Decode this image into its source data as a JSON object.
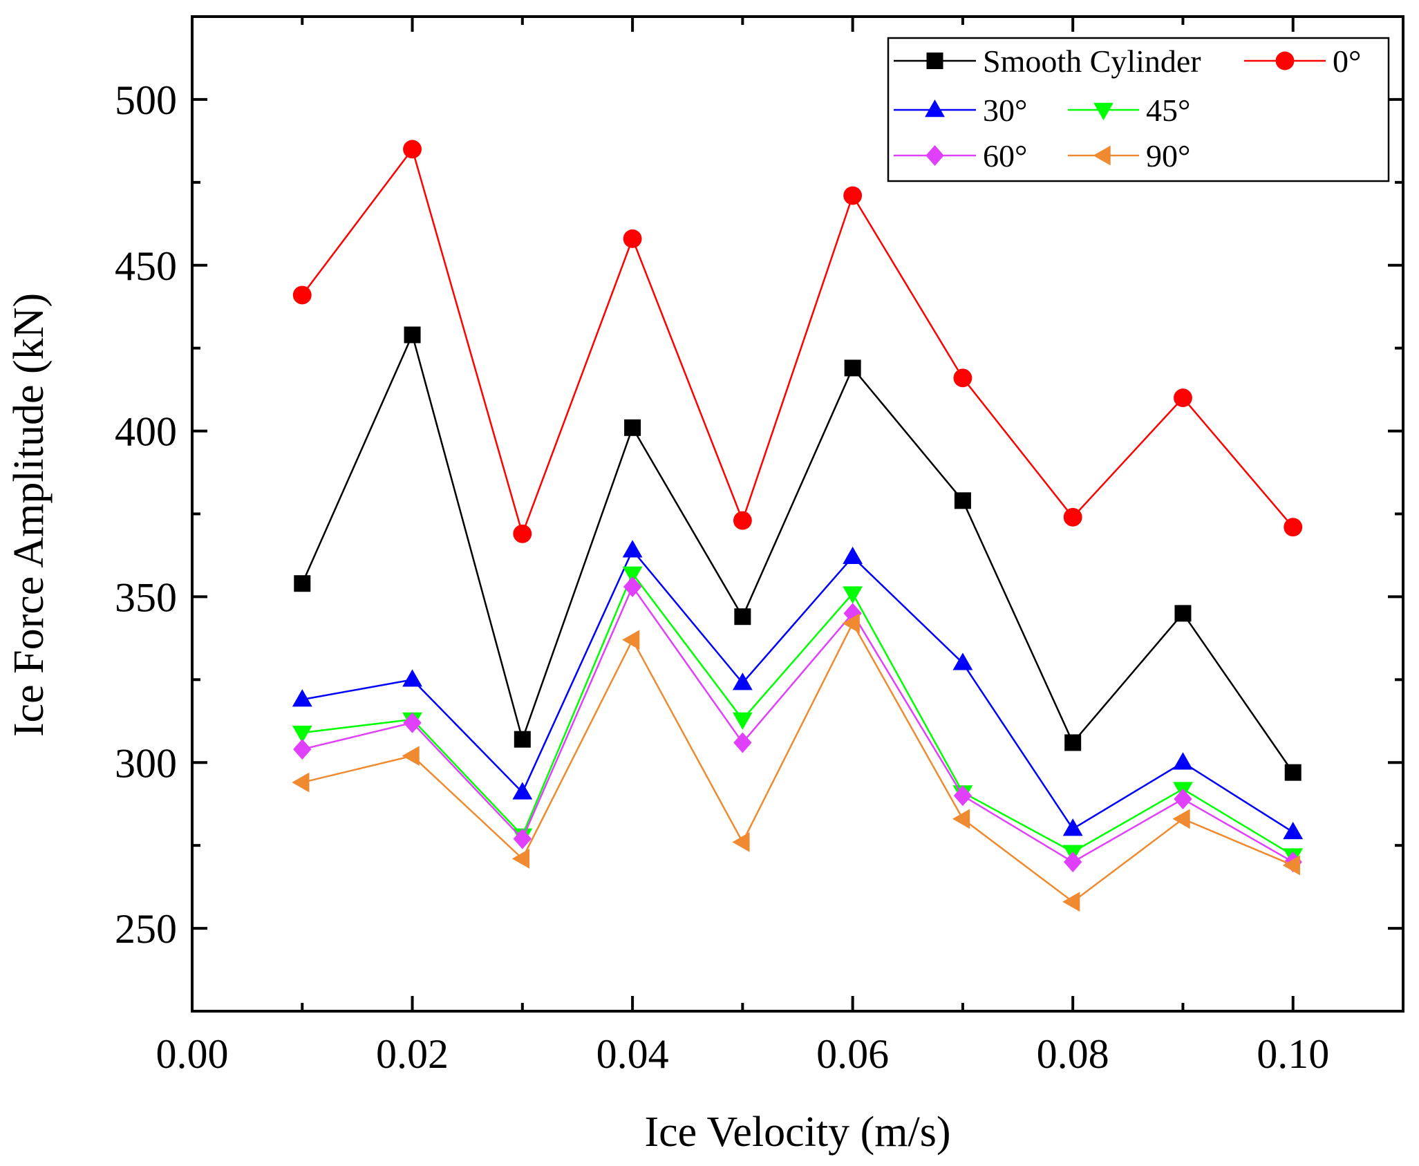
{
  "chart_data": {
    "type": "line",
    "title": "",
    "xlabel": "Ice Velocity (m/s)",
    "ylabel": "Ice Force Amplitude (kN)",
    "xlim": [
      0.0,
      0.11
    ],
    "ylim": [
      225,
      525
    ],
    "xticks": [
      0.0,
      0.02,
      0.04,
      0.06,
      0.08,
      0.1
    ],
    "xtick_labels": [
      "0.00",
      "0.02",
      "0.04",
      "0.06",
      "0.08",
      "0.10"
    ],
    "yticks": [
      250,
      300,
      350,
      400,
      450,
      500
    ],
    "ytick_labels": [
      "250",
      "300",
      "350",
      "400",
      "450",
      "500"
    ],
    "grid": false,
    "legend_position": "top-right",
    "x": [
      0.01,
      0.02,
      0.03,
      0.04,
      0.05,
      0.06,
      0.07,
      0.08,
      0.09,
      0.1
    ],
    "series": [
      {
        "name": "Smooth Cylinder",
        "marker": "square",
        "color": "#000000",
        "values": [
          354,
          429,
          307,
          401,
          344,
          419,
          379,
          306,
          345,
          297
        ]
      },
      {
        "name": "0°",
        "marker": "circle",
        "color": "#ff0000",
        "values": [
          441,
          485,
          369,
          458,
          373,
          471,
          416,
          374,
          410,
          371
        ]
      },
      {
        "name": "30°",
        "marker": "triangle-up",
        "color": "#0000ff",
        "values": [
          319,
          325,
          291,
          364,
          324,
          362,
          330,
          280,
          300,
          279
        ]
      },
      {
        "name": "45°",
        "marker": "triangle-down",
        "color": "#00ff00",
        "values": [
          309,
          313,
          278,
          357,
          313,
          351,
          291,
          273,
          292,
          272
        ]
      },
      {
        "name": "60°",
        "marker": "diamond",
        "color": "#e040fb",
        "values": [
          304,
          312,
          277,
          353,
          306,
          345,
          290,
          270,
          289,
          270
        ]
      },
      {
        "name": "90°",
        "marker": "triangle-left",
        "color": "#f08a30",
        "values": [
          294,
          302,
          271,
          337,
          276,
          342,
          283,
          258,
          283,
          269
        ]
      }
    ]
  }
}
